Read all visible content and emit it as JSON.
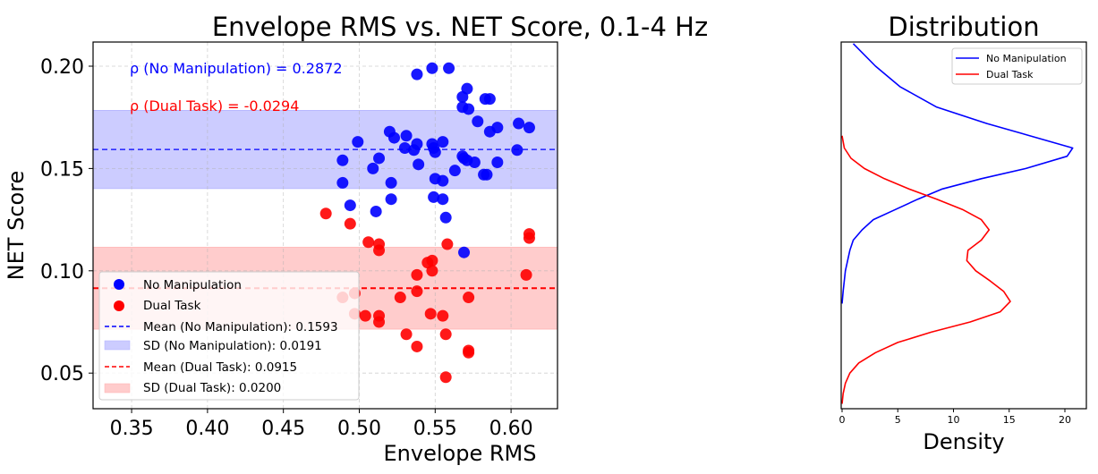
{
  "chart_data": [
    {
      "type": "scatter",
      "title": "Envelope RMS vs. NET Score, 0.1-4 Hz",
      "xlabel": "Envelope RMS",
      "ylabel": "NET Score",
      "xlim": [
        0.3246,
        0.6306
      ],
      "ylim": [
        0.0326,
        0.2118
      ],
      "xticks": [
        0.35,
        0.4,
        0.45,
        0.5,
        0.55,
        0.6
      ],
      "xtick_labels": [
        "0.35",
        "0.40",
        "0.45",
        "0.50",
        "0.55",
        "0.60"
      ],
      "yticks": [
        0.05,
        0.1,
        0.15,
        0.2
      ],
      "ytick_labels": [
        "0.05",
        "0.10",
        "0.15",
        "0.20"
      ],
      "grid": true,
      "annotations": [
        {
          "text": "ρ (No Manipulation) = 0.2872",
          "color": "#0000ff"
        },
        {
          "text": "ρ (Dual Task) = -0.0294",
          "color": "#ff0000"
        }
      ],
      "legend_position": "lower left",
      "legend": [
        {
          "label": "No Manipulation",
          "kind": "marker",
          "color": "#0000ff"
        },
        {
          "label": "Dual Task",
          "kind": "marker",
          "color": "#ff0000"
        },
        {
          "label": "Mean (No Manipulation): 0.1593",
          "kind": "dashed-line",
          "color": "#0000ff"
        },
        {
          "label": "SD (No Manipulation): 0.0191",
          "kind": "band",
          "color": "#ccccff"
        },
        {
          "label": "Mean (Dual Task): 0.0915",
          "kind": "dashed-line",
          "color": "#ff0000"
        },
        {
          "label": "SD (Dual Task): 0.0200",
          "kind": "band",
          "color": "#ffcccc"
        }
      ],
      "reference_lines": [
        {
          "name": "Mean (No Manipulation)",
          "y": 0.1593,
          "sd": 0.0191,
          "color": "#0000ff"
        },
        {
          "name": "Mean (Dual Task)",
          "y": 0.0915,
          "sd": 0.02,
          "color": "#ff0000"
        }
      ],
      "series": [
        {
          "name": "No Manipulation",
          "color": "#0000ff",
          "points": [
            [
              0.548,
              0.199
            ],
            [
              0.559,
              0.199
            ],
            [
              0.538,
              0.196
            ],
            [
              0.571,
              0.189
            ],
            [
              0.568,
              0.185
            ],
            [
              0.583,
              0.184
            ],
            [
              0.586,
              0.184
            ],
            [
              0.568,
              0.18
            ],
            [
              0.572,
              0.179
            ],
            [
              0.578,
              0.173
            ],
            [
              0.605,
              0.172
            ],
            [
              0.612,
              0.17
            ],
            [
              0.591,
              0.17
            ],
            [
              0.586,
              0.168
            ],
            [
              0.52,
              0.168
            ],
            [
              0.523,
              0.165
            ],
            [
              0.531,
              0.166
            ],
            [
              0.499,
              0.163
            ],
            [
              0.538,
              0.162
            ],
            [
              0.548,
              0.162
            ],
            [
              0.555,
              0.163
            ],
            [
              0.53,
              0.16
            ],
            [
              0.549,
              0.16
            ],
            [
              0.536,
              0.159
            ],
            [
              0.55,
              0.158
            ],
            [
              0.604,
              0.159
            ],
            [
              0.568,
              0.156
            ],
            [
              0.569,
              0.155
            ],
            [
              0.571,
              0.154
            ],
            [
              0.489,
              0.154
            ],
            [
              0.513,
              0.155
            ],
            [
              0.576,
              0.153
            ],
            [
              0.591,
              0.153
            ],
            [
              0.539,
              0.152
            ],
            [
              0.509,
              0.15
            ],
            [
              0.563,
              0.149
            ],
            [
              0.582,
              0.147
            ],
            [
              0.584,
              0.147
            ],
            [
              0.55,
              0.145
            ],
            [
              0.555,
              0.144
            ],
            [
              0.489,
              0.143
            ],
            [
              0.521,
              0.143
            ],
            [
              0.549,
              0.136
            ],
            [
              0.555,
              0.135
            ],
            [
              0.521,
              0.135
            ],
            [
              0.494,
              0.132
            ],
            [
              0.511,
              0.129
            ],
            [
              0.557,
              0.126
            ],
            [
              0.569,
              0.109
            ]
          ]
        },
        {
          "name": "Dual Task",
          "color": "#ff0000",
          "points": [
            [
              0.478,
              0.128
            ],
            [
              0.494,
              0.123
            ],
            [
              0.612,
              0.118
            ],
            [
              0.612,
              0.116
            ],
            [
              0.558,
              0.113
            ],
            [
              0.506,
              0.114
            ],
            [
              0.513,
              0.113
            ],
            [
              0.513,
              0.11
            ],
            [
              0.545,
              0.104
            ],
            [
              0.548,
              0.105
            ],
            [
              0.548,
              0.1
            ],
            [
              0.538,
              0.098
            ],
            [
              0.61,
              0.098
            ],
            [
              0.538,
              0.09
            ],
            [
              0.572,
              0.087
            ],
            [
              0.527,
              0.087
            ],
            [
              0.489,
              0.087
            ],
            [
              0.497,
              0.089
            ],
            [
              0.497,
              0.079
            ],
            [
              0.504,
              0.078
            ],
            [
              0.513,
              0.078
            ],
            [
              0.513,
              0.075
            ],
            [
              0.547,
              0.079
            ],
            [
              0.555,
              0.078
            ],
            [
              0.531,
              0.069
            ],
            [
              0.557,
              0.069
            ],
            [
              0.538,
              0.063
            ],
            [
              0.572,
              0.061
            ],
            [
              0.572,
              0.06
            ],
            [
              0.557,
              0.048
            ]
          ]
        }
      ]
    },
    {
      "type": "line",
      "title": "Distribution",
      "xlabel": "Density",
      "ylabel": "",
      "orientation": "horizontal (density on x, NET Score on y)",
      "xlim": [
        0,
        22
      ],
      "ylim": [
        0.0326,
        0.2118
      ],
      "xticks": [
        0,
        5,
        10,
        15,
        20
      ],
      "xtick_labels": [
        "0",
        "5",
        "10",
        "15",
        "20"
      ],
      "grid": false,
      "legend_position": "upper right",
      "legend": [
        {
          "label": "No Manipulation",
          "color": "#0000ff"
        },
        {
          "label": "Dual Task",
          "color": "#ff0000"
        }
      ],
      "series": [
        {
          "name": "No Manipulation",
          "color": "#0000ff",
          "y": [
            0.211,
            0.2,
            0.19,
            0.18,
            0.172,
            0.165,
            0.16,
            0.156,
            0.15,
            0.145,
            0.14,
            0.135,
            0.13,
            0.125,
            0.12,
            0.115,
            0.11,
            0.1,
            0.09,
            0.084
          ],
          "density": [
            1.0,
            3.0,
            5.2,
            8.5,
            13.0,
            17.5,
            20.7,
            20.2,
            16.5,
            12.5,
            9.0,
            6.8,
            4.8,
            2.8,
            1.8,
            1.0,
            0.7,
            0.3,
            0.1,
            0.0
          ]
        },
        {
          "name": "Dual Task",
          "color": "#ff0000",
          "y": [
            0.166,
            0.16,
            0.155,
            0.15,
            0.145,
            0.14,
            0.135,
            0.13,
            0.125,
            0.12,
            0.115,
            0.11,
            0.105,
            0.1,
            0.095,
            0.09,
            0.085,
            0.08,
            0.075,
            0.07,
            0.065,
            0.06,
            0.055,
            0.05,
            0.045,
            0.04,
            0.035
          ],
          "density": [
            0.0,
            0.2,
            0.8,
            2.0,
            3.8,
            6.0,
            8.5,
            10.8,
            12.5,
            13.2,
            12.5,
            11.3,
            11.2,
            12.0,
            13.3,
            14.5,
            15.1,
            14.2,
            11.5,
            8.0,
            5.0,
            3.0,
            1.5,
            0.7,
            0.3,
            0.1,
            0.0
          ]
        }
      ]
    }
  ]
}
